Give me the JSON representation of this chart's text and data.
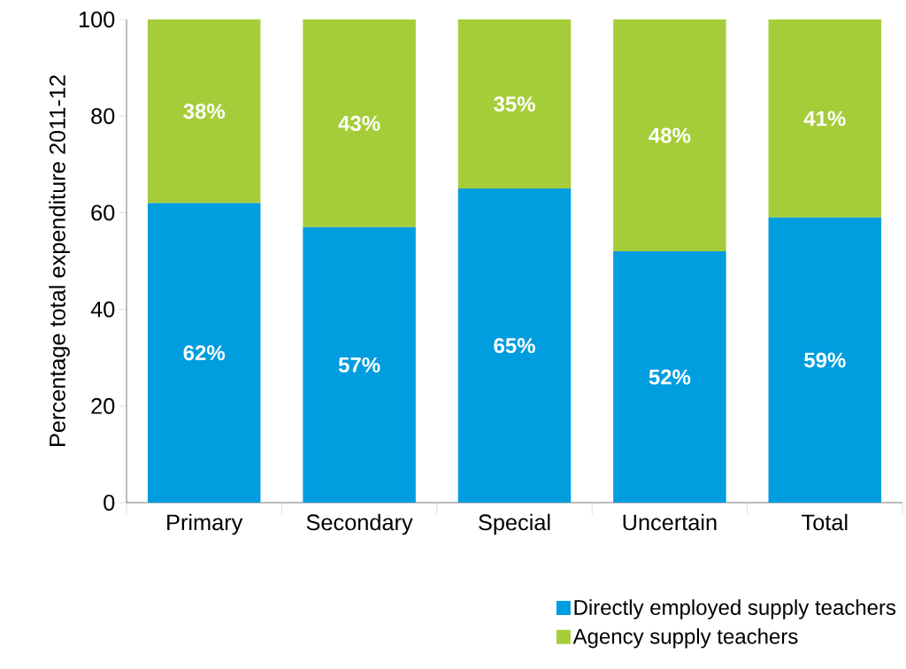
{
  "chart_data": {
    "type": "bar",
    "stacked": true,
    "ylabel": "Percentage total expenditure 2011-12",
    "categories": [
      "Primary",
      "Secondary",
      "Special",
      "Uncertain",
      "Total"
    ],
    "series": [
      {
        "name": "Directly employed supply teachers",
        "color": "#009ddf",
        "values": [
          62,
          57,
          65,
          52,
          59
        ],
        "value_labels": [
          "62%",
          "57%",
          "65%",
          "52%",
          "59%"
        ]
      },
      {
        "name": "Agency supply teachers",
        "color": "#a5cd39",
        "values": [
          38,
          43,
          35,
          48,
          41
        ],
        "value_labels": [
          "38%",
          "43%",
          "35%",
          "48%",
          "41%"
        ]
      }
    ],
    "ylim": [
      0,
      100
    ],
    "yticks": [
      0,
      20,
      40,
      60,
      80,
      100
    ],
    "grid": false,
    "legend": "bottom right"
  }
}
